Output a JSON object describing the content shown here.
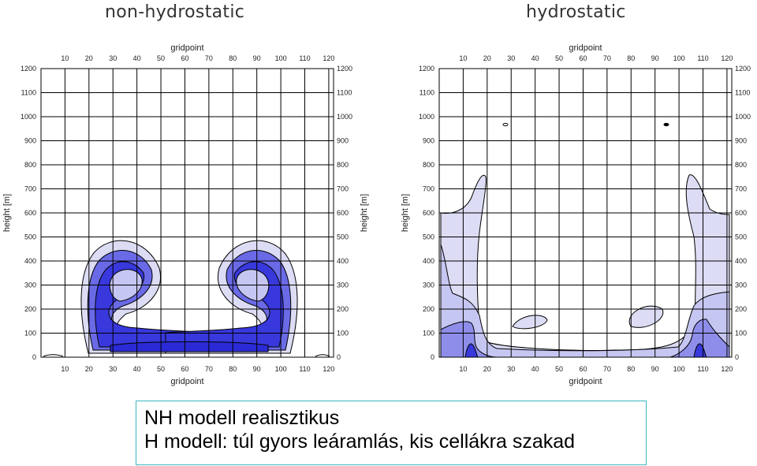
{
  "note": {
    "line1": "NH modell realisztikus",
    "line2": "H modell: túl gyors leáramlás, kis cellákra szakad"
  },
  "colors": {
    "contour_light": "#dcdcf5",
    "contour_mid": "#aaaaee",
    "contour_strong": "#5a5ae0",
    "contour_dark": "#3333dd",
    "grid": "#000000",
    "note_border": "#3bb6c2"
  },
  "chart_data": [
    {
      "type": "heatmap",
      "title": "non-hydrostatic",
      "xlabel": "gridpoint",
      "ylabel": "height [m]",
      "xlim": [
        0,
        122
      ],
      "ylim": [
        0,
        1200
      ],
      "x_ticks": [
        10,
        20,
        30,
        40,
        50,
        60,
        70,
        80,
        90,
        100,
        110,
        120
      ],
      "y_ticks": [
        0,
        100,
        200,
        300,
        400,
        500,
        600,
        700,
        800,
        900,
        1000,
        1100,
        1200
      ],
      "grid": true,
      "description": "symmetric pair of rotor-shaped contour cells centered near gridpoints 40 and 80, filled in shades of blue",
      "cells": [
        {
          "center_x": 40,
          "top_height": 480,
          "bottom_height": 30
        },
        {
          "center_x": 80,
          "top_height": 480,
          "bottom_height": 30
        }
      ]
    },
    {
      "type": "heatmap",
      "title": "hydrostatic",
      "xlabel": "gridpoint",
      "ylabel": "height [m]",
      "xlim": [
        0,
        122
      ],
      "ylim": [
        0,
        1200
      ],
      "x_ticks": [
        10,
        20,
        30,
        40,
        50,
        60,
        70,
        80,
        90,
        100,
        110,
        120
      ],
      "y_ticks": [
        0,
        100,
        200,
        300,
        400,
        500,
        600,
        700,
        800,
        900,
        1000,
        1100,
        1200
      ],
      "grid": true,
      "description": "fast downdraft, contour field splits into small cells near the lateral boundaries",
      "cells": [
        {
          "center_x": 15,
          "top_height": 760,
          "bottom_height": 0
        },
        {
          "center_x": 105,
          "top_height": 760,
          "bottom_height": 0
        }
      ]
    }
  ]
}
